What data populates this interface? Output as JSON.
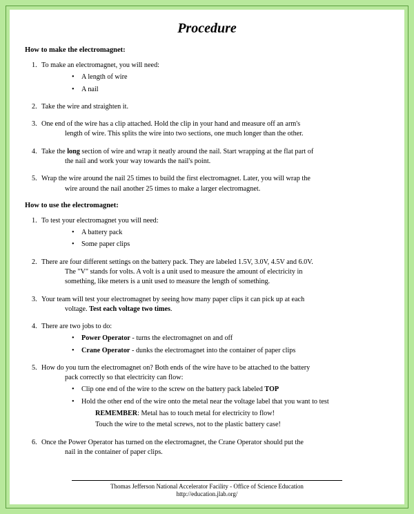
{
  "title": "Procedure",
  "section1_head": "How to make the electromagnet:",
  "s1": {
    "i1": {
      "num": "1.",
      "text": "To make an electromagnet, you will need:",
      "b1": "A length of wire",
      "b2": "A nail"
    },
    "i2": {
      "num": "2.",
      "text": "Take the wire and straighten it."
    },
    "i3": {
      "num": "3.",
      "text": "One end of the wire has a clip attached. Hold the clip in your hand and measure off an arm's",
      "cont": "length of wire. This splits the wire into two sections, one much longer than the other."
    },
    "i4": {
      "num": "4.",
      "pre": "Take the ",
      "bold": "long",
      "post": " section of wire and wrap it neatly around the nail. Start wrapping at the flat part of",
      "cont": "the nail and work your way towards the nail's point."
    },
    "i5": {
      "num": "5.",
      "text": "Wrap the wire around the nail 25 times to build the first electromagnet. Later, you will wrap the",
      "cont": "wire around the nail another 25 times to make a larger electromagnet."
    }
  },
  "section2_head": "How to use the electromagnet:",
  "s2": {
    "i1": {
      "num": "1.",
      "text": "To test your electromagnet you will need:",
      "b1": "A battery pack",
      "b2": "Some paper clips"
    },
    "i2": {
      "num": "2.",
      "text": "There are four different settings on the battery pack. They are labeled 1.5V, 3.0V, 4.5V and 6.0V.",
      "cont1": "The \"V\" stands for volts. A volt is a unit used to measure the amount of electricity in",
      "cont2": "something, like meters is a unit used to measure the length of something."
    },
    "i3": {
      "num": "3.",
      "text": "Your team will test your electromagnet by seeing how many paper clips it can pick up at each",
      "cont_pre": "voltage. ",
      "cont_bold": "Test each voltage two times",
      "cont_post": "."
    },
    "i4": {
      "num": "4.",
      "text": "There are two jobs to do:",
      "b1_bold": "Power Operator",
      "b1_post": " - turns the electromagnet on and off",
      "b2_bold": "Crane Operator",
      "b2_post": " - dunks the electromagnet into the container of paper clips"
    },
    "i5": {
      "num": "5.",
      "text": "How do you turn the electromagnet on? Both ends of the wire have to be attached to the battery",
      "cont": "pack correctly so that electricity can flow:",
      "b1_pre": "Clip one end of the wire to the screw on the battery pack labeled ",
      "b1_bold": "TOP",
      "b2": "Hold the other end of the wire onto the metal near the voltage label that you want to test",
      "rem_bold": "REMEMBER",
      "rem_post": ": Metal has to touch metal for electricity to flow!",
      "rem2": "Touch the wire to the metal screws, not to the plastic battery case!"
    },
    "i6": {
      "num": "6.",
      "text": "Once the Power Operator has turned on the electromagnet, the Crane Operator should put the",
      "cont": "nail in the container of paper clips."
    }
  },
  "footer1": "Thomas Jefferson National Accelerator Facility - Office of Science Education",
  "footer2": "http://education.jlab.org/"
}
